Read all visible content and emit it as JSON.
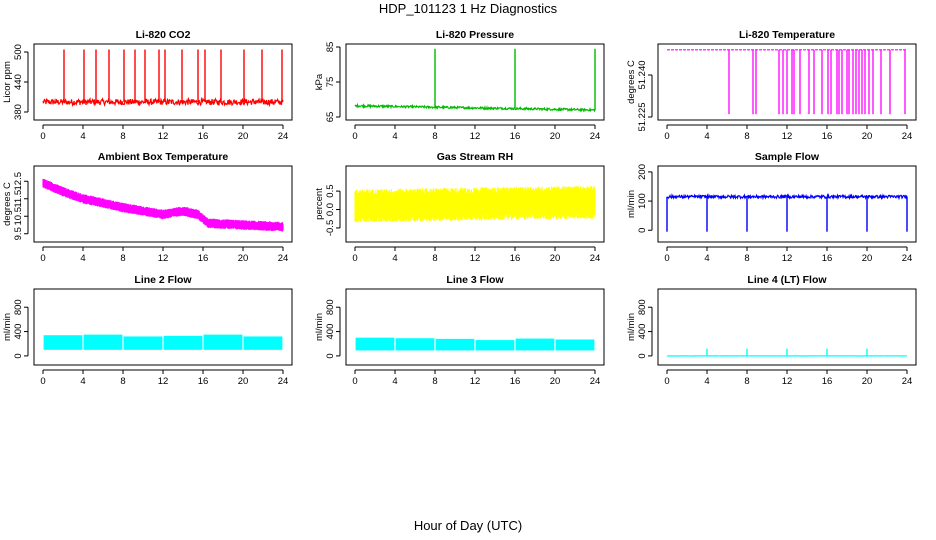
{
  "figure": {
    "title": "HDP_101123  1 Hz Diagnostics",
    "xlabel": "Hour of Day (UTC)"
  },
  "chart_data": [
    {
      "id": "co2",
      "type": "line",
      "title": "Li-820 CO2",
      "ylabel": "Licor ppm",
      "color": "#ff0000",
      "xlim": [
        0,
        24
      ],
      "ylim": [
        370,
        510
      ],
      "xticks": [
        0,
        4,
        8,
        12,
        16,
        20,
        24
      ],
      "xtick_labels": [
        "0",
        "4",
        "8",
        "12",
        "16",
        "20",
        "24"
      ],
      "yticks": [
        380,
        440,
        500
      ],
      "ytick_labels": [
        "380",
        "440",
        "500"
      ],
      "pattern": {
        "kind": "baseline-spikes",
        "base": 400,
        "noise": 6,
        "spike_hours": [
          2.1,
          4.1,
          5.3,
          6.6,
          8.1,
          9.2,
          10.2,
          11.6,
          12.2,
          13.9,
          15.5,
          16.2,
          17.8,
          20.1,
          21.9,
          23.9
        ],
        "spike_value": 505
      }
    },
    {
      "id": "pressure",
      "type": "line",
      "title": "Li-820 Pressure",
      "ylabel": "kPa",
      "color": "#00bb00",
      "xlim": [
        0,
        24
      ],
      "ylim": [
        65,
        85
      ],
      "xticks": [
        0,
        4,
        8,
        12,
        16,
        20,
        24
      ],
      "xtick_labels": [
        "0",
        "4",
        "8",
        "12",
        "16",
        "20",
        "24"
      ],
      "yticks": [
        65,
        75,
        85
      ],
      "ytick_labels": [
        "65",
        "75",
        "85"
      ],
      "pattern": {
        "kind": "drift-spikes",
        "start": 68.2,
        "end": 67.0,
        "noise": 0.3,
        "spike_hours": [
          8.0,
          16.0,
          24.0
        ],
        "spike_value": 84.5
      }
    },
    {
      "id": "licor-temp",
      "type": "line",
      "title": "Li-820 Temperature",
      "ylabel": "degrees C",
      "color": "#ff00ff",
      "xlim": [
        0,
        24
      ],
      "ylim": [
        51.225,
        51.25
      ],
      "xticks": [
        0,
        4,
        8,
        12,
        16,
        20,
        24
      ],
      "xtick_labels": [
        "0",
        "4",
        "8",
        "12",
        "16",
        "20",
        "24"
      ],
      "yticks": [
        51.225,
        51.24
      ],
      "ytick_labels": [
        "51.225",
        "51.240"
      ],
      "pattern": {
        "kind": "flat-dropouts",
        "base": 51.249,
        "low": 51.226,
        "drop_hours": [
          6.2,
          8.6,
          8.9,
          11.2,
          11.6,
          12.0,
          12.5,
          12.7,
          13.3,
          14.2,
          14.7,
          15.5,
          16.1,
          16.4,
          17.0,
          17.2,
          17.5,
          18.0,
          18.2,
          18.6,
          18.9,
          19.2,
          19.5,
          19.8,
          20.2,
          20.6,
          21.4,
          22.3,
          23.8
        ]
      }
    },
    {
      "id": "ambient-box-temp",
      "type": "line",
      "title": "Ambient Box Temperature",
      "ylabel": "degrees C",
      "color": "#ff00ff",
      "xlim": [
        0,
        24
      ],
      "ylim": [
        9.2,
        13.2
      ],
      "xticks": [
        0,
        4,
        8,
        12,
        16,
        20,
        24
      ],
      "xtick_labels": [
        "0",
        "4",
        "8",
        "12",
        "16",
        "20",
        "24"
      ],
      "yticks": [
        9.5,
        10.5,
        11.5,
        12.5
      ],
      "ytick_labels": [
        "9.5",
        "10.5",
        "11.5",
        "12.5"
      ],
      "pattern": {
        "kind": "trend-band",
        "knots": [
          [
            0,
            12.4
          ],
          [
            2,
            11.9
          ],
          [
            4,
            11.5
          ],
          [
            8,
            11.0
          ],
          [
            10,
            10.8
          ],
          [
            12,
            10.6
          ],
          [
            14,
            10.8
          ],
          [
            15.5,
            10.6
          ],
          [
            16.5,
            10.1
          ],
          [
            20,
            10.0
          ],
          [
            24,
            9.9
          ]
        ],
        "band": 0.55
      }
    },
    {
      "id": "gas-stream-rh",
      "type": "line",
      "title": "Gas Stream RH",
      "ylabel": "percent",
      "color": "#ffff00",
      "xlim": [
        0,
        24
      ],
      "ylim": [
        -0.8,
        1.1
      ],
      "xticks": [
        0,
        4,
        8,
        12,
        16,
        20,
        24
      ],
      "xtick_labels": [
        "0",
        "4",
        "8",
        "12",
        "16",
        "20",
        "24"
      ],
      "yticks": [
        -0.5,
        0.0,
        0.5
      ],
      "ytick_labels": [
        "-0.5",
        "0.0",
        "0.5"
      ],
      "pattern": {
        "kind": "trend-band",
        "knots": [
          [
            0,
            0.1
          ],
          [
            24,
            0.2
          ]
        ],
        "band": 0.9
      }
    },
    {
      "id": "sample-flow",
      "type": "line",
      "title": "Sample Flow",
      "ylabel": "ml/min",
      "color": "#0000ff",
      "xlim": [
        0,
        24
      ],
      "ylim": [
        -30,
        210
      ],
      "xticks": [
        0,
        4,
        8,
        12,
        16,
        20,
        24
      ],
      "xtick_labels": [
        "0",
        "4",
        "8",
        "12",
        "16",
        "20",
        "24"
      ],
      "yticks": [
        0,
        100,
        200
      ],
      "ytick_labels": [
        "0",
        "100",
        "200"
      ],
      "pattern": {
        "kind": "baseline-dips",
        "base": 115,
        "noise": 5,
        "dip_hours": [
          0.0,
          4.0,
          8.0,
          12.0,
          16.0,
          20.0,
          24.0
        ],
        "dip_value": -5
      }
    },
    {
      "id": "line2-flow",
      "type": "area",
      "title": "Line 2 Flow",
      "ylabel": "ml/min",
      "color": "#00ffff",
      "xlim": [
        0,
        24
      ],
      "ylim": [
        -100,
        1050
      ],
      "xticks": [
        0,
        4,
        8,
        12,
        16,
        20,
        24
      ],
      "xtick_labels": [
        "0",
        "4",
        "8",
        "12",
        "16",
        "20",
        "24"
      ],
      "yticks": [
        0,
        400,
        800
      ],
      "ytick_labels": [
        "0",
        "400",
        "800"
      ],
      "pattern": {
        "kind": "band-blocks",
        "low": 100,
        "blocks": [
          [
            0,
            4,
            340
          ],
          [
            4,
            8,
            350
          ],
          [
            8,
            12,
            320
          ],
          [
            12,
            16,
            330
          ],
          [
            16,
            20,
            350
          ],
          [
            20,
            24,
            320
          ]
        ]
      }
    },
    {
      "id": "line3-flow",
      "type": "area",
      "title": "Line 3 Flow",
      "ylabel": "ml/min",
      "color": "#00ffff",
      "xlim": [
        0,
        24
      ],
      "ylim": [
        -100,
        1050
      ],
      "xticks": [
        0,
        4,
        8,
        12,
        16,
        20,
        24
      ],
      "xtick_labels": [
        "0",
        "4",
        "8",
        "12",
        "16",
        "20",
        "24"
      ],
      "yticks": [
        0,
        400,
        800
      ],
      "ytick_labels": [
        "0",
        "400",
        "800"
      ],
      "pattern": {
        "kind": "band-blocks",
        "low": 90,
        "blocks": [
          [
            0,
            4,
            300
          ],
          [
            4,
            8,
            290
          ],
          [
            8,
            12,
            280
          ],
          [
            12,
            16,
            260
          ],
          [
            16,
            20,
            285
          ],
          [
            20,
            24,
            270
          ]
        ]
      }
    },
    {
      "id": "line4-flow",
      "type": "line",
      "title": "Line 4 (LT) Flow",
      "ylabel": "ml/min",
      "color": "#00ffff",
      "xlim": [
        0,
        24
      ],
      "ylim": [
        -100,
        1050
      ],
      "xticks": [
        0,
        4,
        8,
        12,
        16,
        20,
        24
      ],
      "xtick_labels": [
        "0",
        "4",
        "8",
        "12",
        "16",
        "20",
        "24"
      ],
      "yticks": [
        0,
        400,
        800
      ],
      "ytick_labels": [
        "0",
        "400",
        "800"
      ],
      "pattern": {
        "kind": "baseline-spikes",
        "base": 0,
        "noise": 2,
        "spike_hours": [
          4.0,
          8.0,
          12.0,
          16.0,
          20.0
        ],
        "spike_value": 120
      }
    }
  ]
}
